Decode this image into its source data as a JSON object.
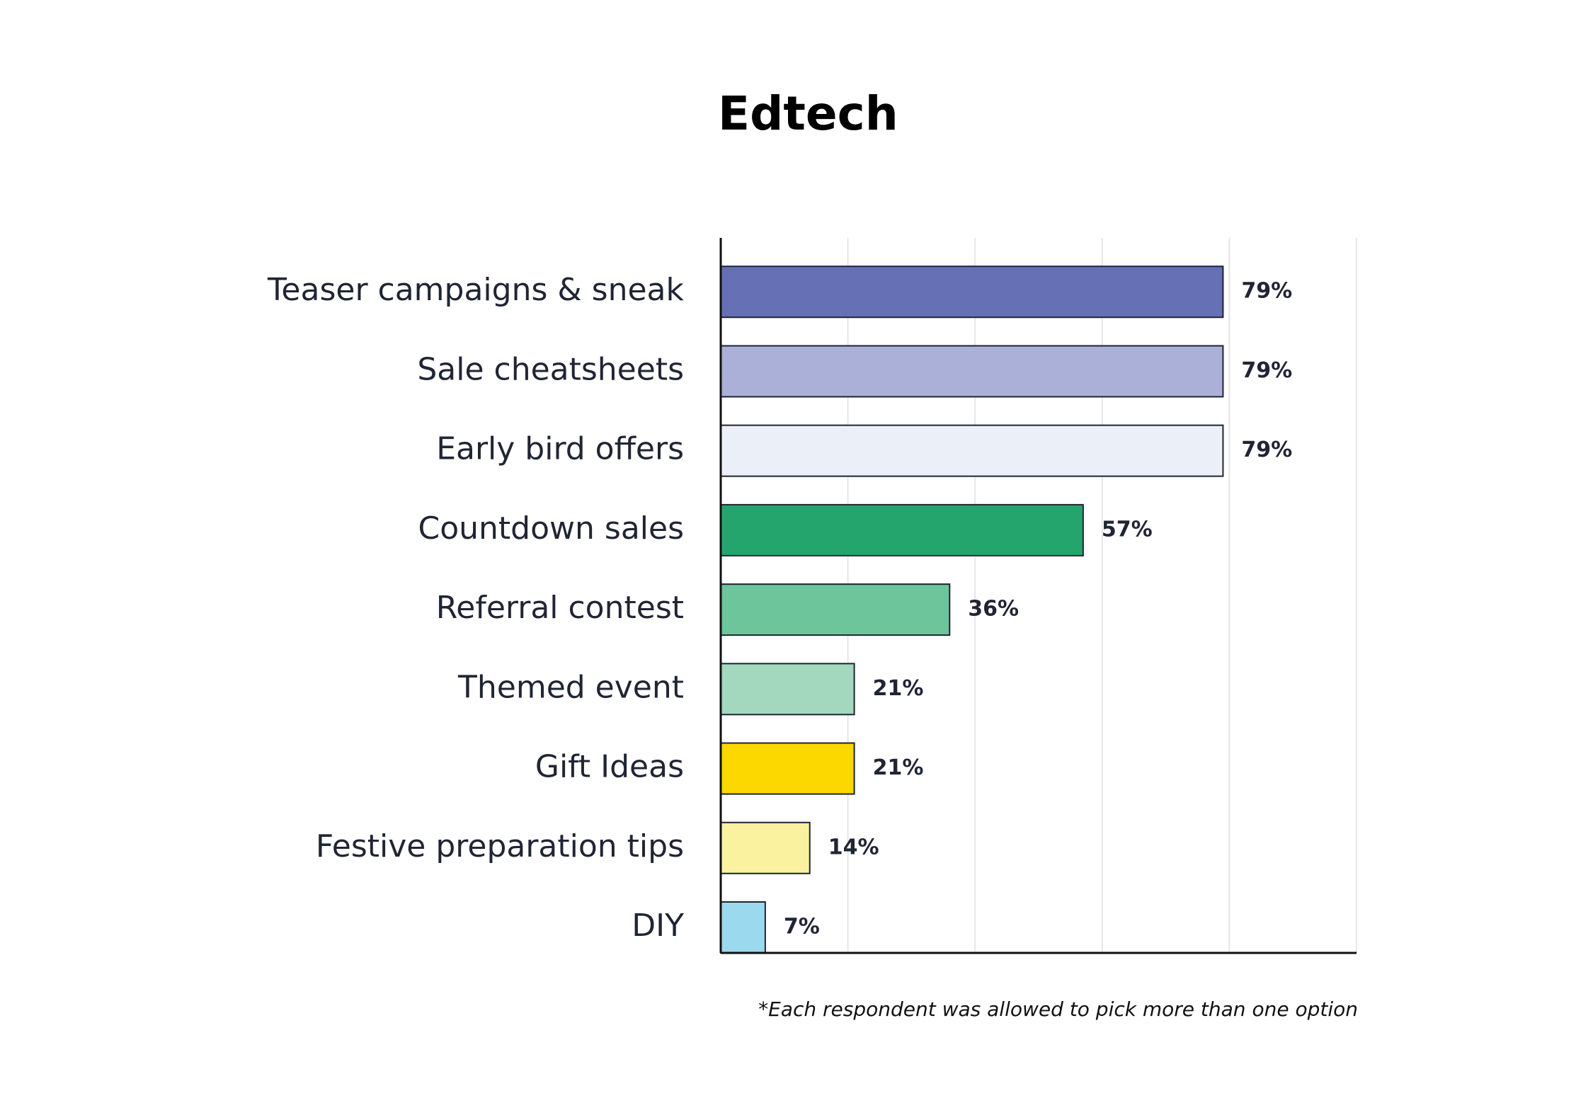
{
  "chart_data": {
    "type": "bar",
    "orientation": "horizontal",
    "title": "Edtech",
    "categories": [
      "Teaser campaigns & sneak",
      "Sale cheatsheets",
      "Early bird offers",
      "Countdown sales",
      "Referral contest",
      "Themed event",
      "Gift Ideas",
      "Festive preparation tips",
      "DIY"
    ],
    "values": [
      79,
      79,
      79,
      57,
      36,
      21,
      21,
      14,
      7
    ],
    "value_labels": [
      "79%",
      "79%",
      "79%",
      "57%",
      "36%",
      "21%",
      "21%",
      "14%",
      "7%"
    ],
    "colors": [
      "#6670b5",
      "#aab0d8",
      "#ebeff8",
      "#25a56e",
      "#6cc59b",
      "#a3d8bf",
      "#fcd700",
      "#fbf2a0",
      "#9bd9ee"
    ],
    "xlabel": "",
    "ylabel": "",
    "xlim": [
      0,
      100
    ],
    "grid": true,
    "footnote": "*Each respondent was allowed to pick more than one option"
  }
}
